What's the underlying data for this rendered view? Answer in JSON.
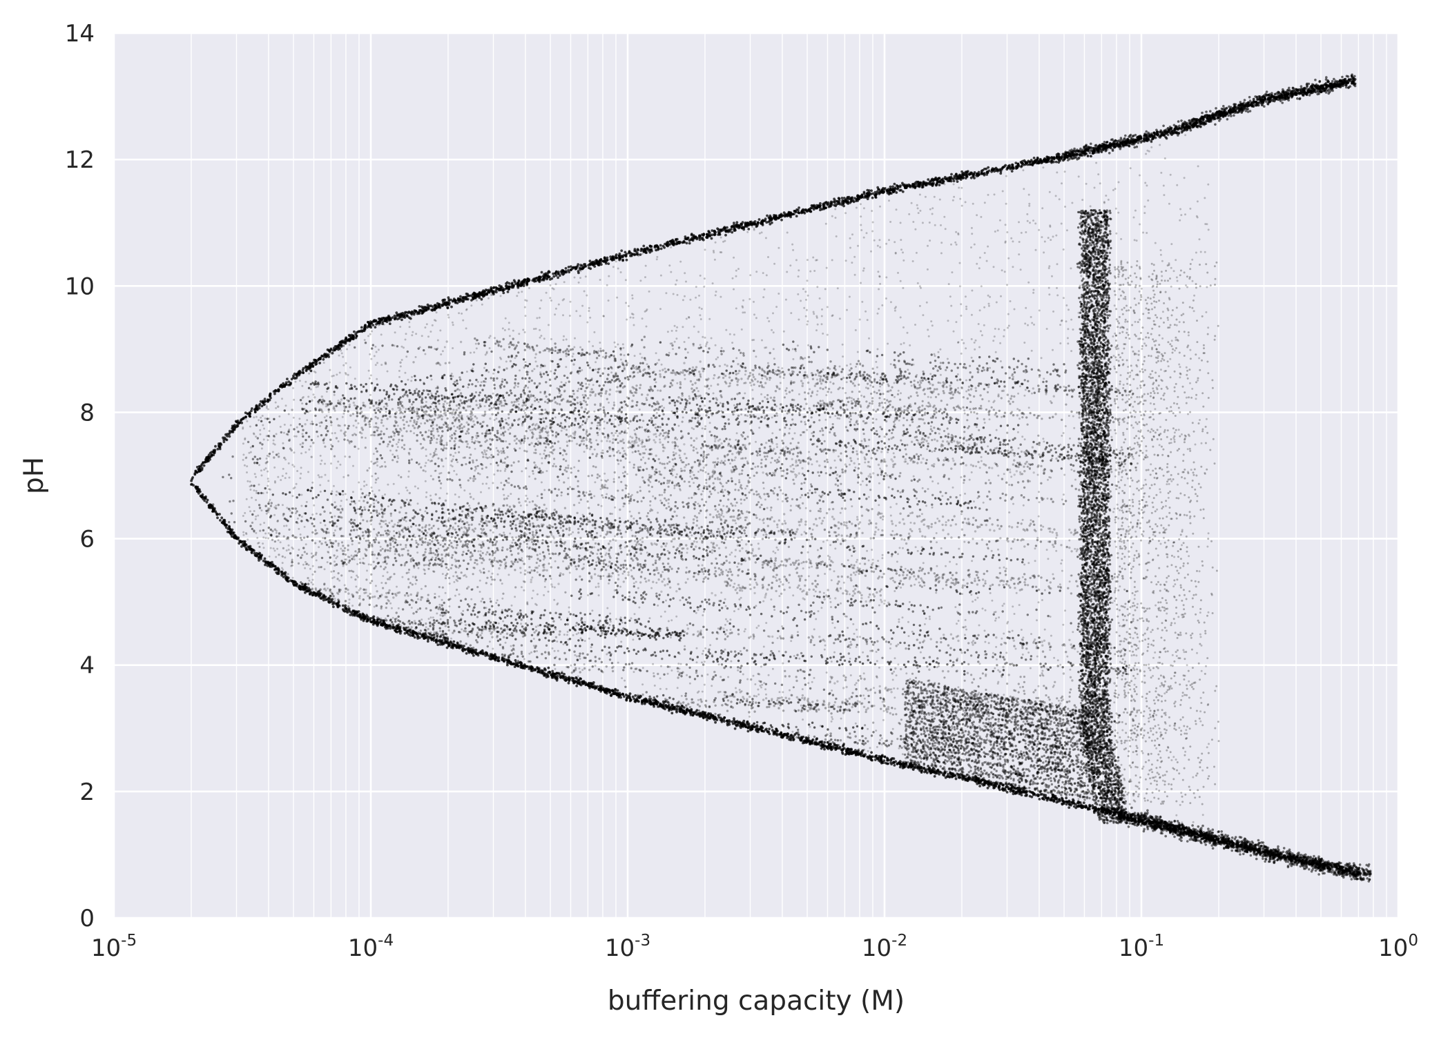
{
  "chart_data": {
    "type": "scatter",
    "title": "",
    "xlabel": "buffering capacity (M)",
    "ylabel": "pH",
    "xscale": "log",
    "xlim": [
      1e-05,
      1
    ],
    "ylim": [
      0,
      14
    ],
    "grid": true,
    "grid_minor_x": true,
    "background_color": "#eaeaf2",
    "grid_color": "#ffffff",
    "marker_color": "#000000",
    "x_ticks": [
      {
        "base": "10",
        "exp": "-5",
        "value": 1e-05
      },
      {
        "base": "10",
        "exp": "-4",
        "value": 0.0001
      },
      {
        "base": "10",
        "exp": "-3",
        "value": 0.001
      },
      {
        "base": "10",
        "exp": "-2",
        "value": 0.01
      },
      {
        "base": "10",
        "exp": "-1",
        "value": 0.1
      },
      {
        "base": "10",
        "exp": "0",
        "value": 1
      }
    ],
    "y_ticks": [
      {
        "label": "0",
        "value": 0
      },
      {
        "label": "2",
        "value": 2
      },
      {
        "label": "4",
        "value": 4
      },
      {
        "label": "6",
        "value": 6
      },
      {
        "label": "8",
        "value": 8
      },
      {
        "label": "10",
        "value": 10
      },
      {
        "label": "12",
        "value": 12
      },
      {
        "label": "14",
        "value": 14
      }
    ],
    "envelope": {
      "vertex": {
        "x": 2e-05,
        "y": 7.0
      },
      "upper_points": [
        {
          "x": 2e-05,
          "y": 6.95
        },
        {
          "x": 3e-05,
          "y": 7.8
        },
        {
          "x": 5e-05,
          "y": 8.55
        },
        {
          "x": 0.0001,
          "y": 9.4
        },
        {
          "x": 0.001,
          "y": 10.5
        },
        {
          "x": 0.01,
          "y": 11.5
        },
        {
          "x": 0.05,
          "y": 12.05
        },
        {
          "x": 0.12,
          "y": 12.4
        },
        {
          "x": 0.3,
          "y": 12.95
        },
        {
          "x": 0.68,
          "y": 13.25
        }
      ],
      "lower_points": [
        {
          "x": 2e-05,
          "y": 6.9
        },
        {
          "x": 3e-05,
          "y": 6.0
        },
        {
          "x": 5e-05,
          "y": 5.3
        },
        {
          "x": 0.0001,
          "y": 4.7
        },
        {
          "x": 0.001,
          "y": 3.5
        },
        {
          "x": 0.01,
          "y": 2.5
        },
        {
          "x": 0.05,
          "y": 1.85
        },
        {
          "x": 0.1,
          "y": 1.55
        },
        {
          "x": 0.3,
          "y": 1.05
        },
        {
          "x": 0.7,
          "y": 0.7
        }
      ]
    },
    "vertical_band": {
      "x_min": 0.058,
      "x_max": 0.075,
      "y_min": 1.5,
      "y_max": 11.2
    },
    "dense_clusters": [
      {
        "x": 0.0003,
        "y": 7.6
      },
      {
        "x": 0.002,
        "y": 7.0
      },
      {
        "x": 0.01,
        "y": 8.0
      },
      {
        "x": 0.00015,
        "y": 5.8
      },
      {
        "x": 0.03,
        "y": 3.2
      }
    ],
    "approx_point_count": 45000
  }
}
